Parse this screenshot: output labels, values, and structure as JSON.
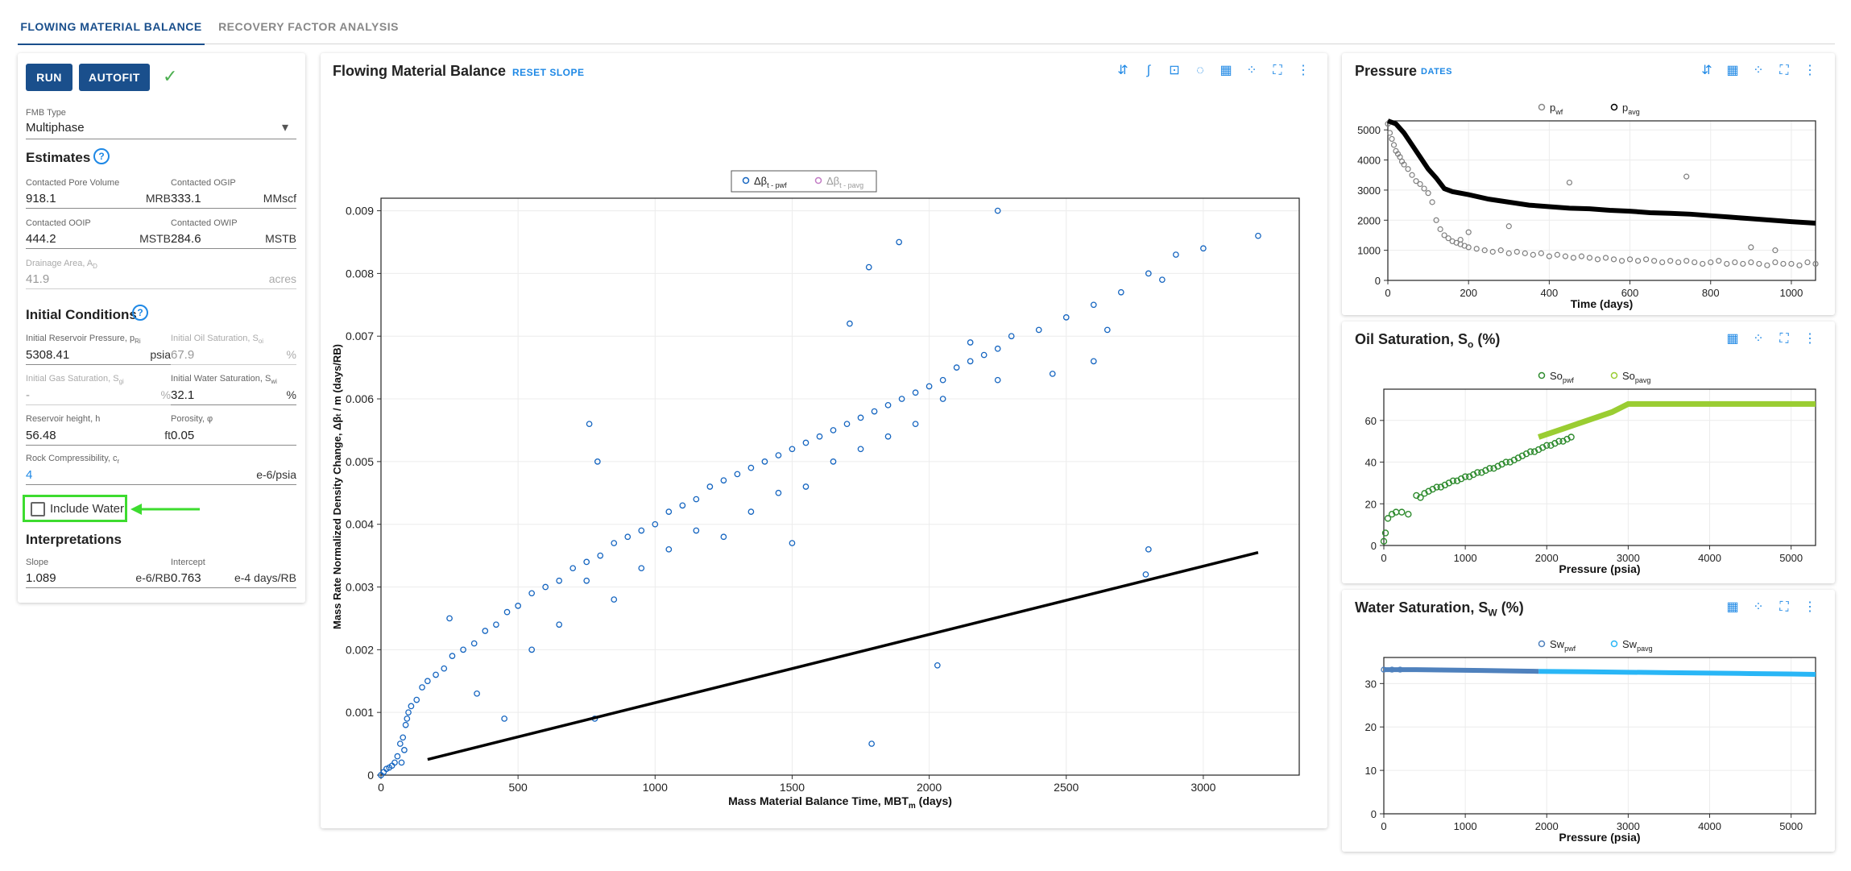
{
  "tabs": [
    {
      "label": "FLOWING MATERIAL BALANCE"
    },
    {
      "label": "RECOVERY FACTOR ANALYSIS"
    }
  ],
  "controls": {
    "run_label": "RUN",
    "autofit_label": "AUTOFIT",
    "fmb_type_label": "FMB Type",
    "fmb_type_value": "Multiphase",
    "estimates_title": "Estimates",
    "initial_conditions_title": "Initial Conditions",
    "include_water_label": "Include Water",
    "interpretations_title": "Interpretations",
    "help_glyph": "?"
  },
  "estimates": {
    "pore_volume": {
      "label": "Contacted Pore Volume",
      "value": "918.1",
      "unit": "MRB"
    },
    "ogip": {
      "label": "Contacted OGIP",
      "value": "333.1",
      "unit": "MMscf"
    },
    "ooip": {
      "label": "Contacted OOIP",
      "value": "444.2",
      "unit": "MSTB"
    },
    "owip": {
      "label": "Contacted OWIP",
      "value": "284.6",
      "unit": "MSTB"
    },
    "drainage_label": "Drainage Area, A",
    "drainage_sub": "D",
    "drainage_value": "41.9",
    "drainage_unit": "acres"
  },
  "initial_conditions": {
    "pressure_label": "Initial Reservoir Pressure, p",
    "pressure_sub": "Ri",
    "pressure_value": "5308.41",
    "pressure_unit": "psia",
    "oil_sat_label": "Initial Oil Saturation, S",
    "oil_sat_sub": "oi",
    "oil_sat_value": "67.9",
    "oil_sat_unit": "%",
    "gas_sat_label": "Initial Gas Saturation, S",
    "gas_sat_sub": "gi",
    "gas_sat_value": "-",
    "gas_sat_unit": "%",
    "water_sat_label": "Initial Water Saturation, S",
    "water_sat_sub": "wi",
    "water_sat_value": "32.1",
    "water_sat_unit": "%",
    "height_label": "Reservoir height, h",
    "height_value": "56.48",
    "height_unit": "ft",
    "porosity_label": "Porosity, φ",
    "porosity_value": "0.05",
    "compress_label": "Rock Compressibility, c",
    "compress_sub": "r",
    "compress_value": "4",
    "compress_unit": "e-6/psia"
  },
  "interpretations": {
    "slope": {
      "label": "Slope",
      "value": "1.089",
      "unit": "e-6/RB"
    },
    "intercept": {
      "label": "Intercept",
      "value": "0.763",
      "unit": "e-4 days/RB"
    }
  },
  "main_chart": {
    "title": "Flowing Material Balance",
    "reset_label": "RESET SLOPE",
    "legend_a": "Δβ",
    "legend_a_sub": "t - pwf",
    "legend_b": "Δβ",
    "legend_b_sub": "t - pavg",
    "xlabel": "Mass Material Balance Time, MBT",
    "xlabel_sub": "m",
    "xlabel_unit": " (days)",
    "ylabel": "Mass Rate Normalized Density Change, Δβ",
    "ylabel_sub": "t",
    "ylabel_unit": " / m (days/RB)"
  },
  "pressure_chart": {
    "title": "Pressure",
    "dates_label": "DATES",
    "legend_a": "p",
    "legend_a_sub": "wf",
    "legend_b": "p",
    "legend_b_sub": "avg",
    "xlabel": "Time (days)"
  },
  "oil_chart": {
    "title": "Oil Saturation, S",
    "title_sub": "o",
    "title_unit": " (%)",
    "legend_a": "So",
    "legend_a_sub": "pwf",
    "legend_b": "So",
    "legend_b_sub": "pavg",
    "xlabel": "Pressure (psia)"
  },
  "water_chart": {
    "title": "Water Saturation, S",
    "title_sub": "W",
    "title_unit": " (%)",
    "legend_a": "Sw",
    "legend_a_sub": "pwf",
    "legend_b": "Sw",
    "legend_b_sub": "pavg",
    "xlabel": "Pressure (psia)"
  },
  "colors": {
    "primary": "#1a4f8c",
    "accent": "#1e88e5",
    "pwf_blue": "#1565c0",
    "pavg_pink": "#c27bc4",
    "highlight_green": "#3ddc2f",
    "check_green": "#4caf50",
    "so_pwf": "#2e8b2e",
    "so_pavg": "#9acd32",
    "sw_pwf": "#4f81bd",
    "sw_pavg": "#29b6f6"
  },
  "icons": {
    "check": "✓",
    "dropdown": "▾",
    "more": "⋮",
    "table": "▦",
    "fullscreen": "⛶",
    "dots": "⁘"
  },
  "chart_data": [
    {
      "type": "scatter",
      "title": "Flowing Material Balance",
      "xlabel": "Mass Material Balance Time, MBTm (days)",
      "ylabel": "Mass Rate Normalized Density Change, Δβt / m (days/RB)",
      "xlim": [
        0,
        3350
      ],
      "ylim": [
        0,
        0.0092
      ],
      "xticks": [
        0,
        500,
        1000,
        1500,
        2000,
        2500,
        3000
      ],
      "yticks": [
        0,
        0.001,
        0.002,
        0.003,
        0.004,
        0.005,
        0.006,
        0.007,
        0.008,
        0.009
      ],
      "ytick_labels": [
        "0",
        "0.001",
        "0.002",
        "0.003",
        "0.004",
        "0.005",
        "0.006",
        "0.007",
        "0.008",
        "0.009"
      ],
      "legend": "top-center",
      "series": [
        {
          "name": "Δβt - pwf",
          "kind": "scatter",
          "x": [
            0,
            10,
            20,
            30,
            40,
            50,
            60,
            70,
            80,
            90,
            95,
            100,
            85,
            75,
            110,
            130,
            150,
            170,
            200,
            230,
            260,
            300,
            340,
            380,
            420,
            460,
            500,
            550,
            600,
            650,
            700,
            750,
            800,
            850,
            900,
            950,
            1000,
            1050,
            1100,
            1150,
            1200,
            1250,
            1300,
            1350,
            1400,
            1450,
            1500,
            1550,
            1600,
            1650,
            1700,
            1750,
            1800,
            1850,
            1900,
            1950,
            2000,
            2050,
            2100,
            2150,
            2200,
            2250,
            2300,
            2400,
            2500,
            2600,
            2700,
            2800,
            2900,
            3000,
            3200,
            1790,
            2030,
            2800,
            2790,
            780,
            1500,
            2150,
            2600,
            250,
            350,
            450,
            550,
            650,
            750,
            850,
            950,
            1050,
            1150,
            1250,
            1350,
            1450,
            1550,
            1650,
            1750,
            1850,
            1950,
            2050,
            2250,
            2450,
            2650,
            2850,
            760,
            790,
            1710,
            1780,
            1890,
            2250
          ],
          "y": [
            0,
            5e-05,
            0.0001,
            0.00012,
            0.00015,
            0.0002,
            0.0003,
            0.0005,
            0.0006,
            0.0008,
            0.0009,
            0.001,
            0.0004,
            0.0002,
            0.0011,
            0.0012,
            0.0014,
            0.0015,
            0.0016,
            0.0017,
            0.0019,
            0.002,
            0.0021,
            0.0023,
            0.0024,
            0.0026,
            0.0027,
            0.0029,
            0.003,
            0.0031,
            0.0033,
            0.0034,
            0.0035,
            0.0037,
            0.0038,
            0.0039,
            0.004,
            0.0042,
            0.0043,
            0.0044,
            0.0046,
            0.0047,
            0.0048,
            0.0049,
            0.005,
            0.0051,
            0.0052,
            0.0053,
            0.0054,
            0.0055,
            0.0056,
            0.0057,
            0.0058,
            0.0059,
            0.006,
            0.0061,
            0.0062,
            0.0063,
            0.0065,
            0.0066,
            0.0067,
            0.0068,
            0.007,
            0.0071,
            0.0073,
            0.0075,
            0.0077,
            0.008,
            0.0083,
            0.0084,
            0.0086,
            0.0005,
            0.00175,
            0.0036,
            0.0032,
            0.0009,
            0.0037,
            0.0069,
            0.0066,
            0.0025,
            0.0013,
            0.0009,
            0.002,
            0.0024,
            0.0031,
            0.0028,
            0.0033,
            0.0036,
            0.0039,
            0.0038,
            0.0042,
            0.0045,
            0.0046,
            0.005,
            0.0052,
            0.0054,
            0.0056,
            0.006,
            0.0063,
            0.0064,
            0.0071,
            0.0079,
            0.0056,
            0.005,
            0.0072,
            0.0081,
            0.0085,
            0.009
          ]
        },
        {
          "name": "Δβt - pavg",
          "kind": "scatter",
          "x": [],
          "y": []
        },
        {
          "name": "fit",
          "kind": "line",
          "x": [
            170,
            3200
          ],
          "y": [
            0.00025,
            0.00355
          ]
        }
      ]
    },
    {
      "type": "scatter",
      "title": "Pressure",
      "xlabel": "Time (days)",
      "xlim": [
        0,
        1060
      ],
      "ylim": [
        0,
        5300
      ],
      "xticks": [
        0,
        200,
        400,
        600,
        800,
        1000
      ],
      "yticks": [
        0,
        1000,
        2000,
        3000,
        4000,
        5000
      ],
      "legend": "top-center",
      "series": [
        {
          "name": "pwf",
          "kind": "scatter",
          "x": [
            0,
            5,
            10,
            15,
            20,
            25,
            30,
            35,
            40,
            50,
            60,
            70,
            80,
            90,
            100,
            110,
            120,
            130,
            140,
            150,
            160,
            170,
            180,
            190,
            200,
            220,
            240,
            260,
            280,
            300,
            320,
            340,
            360,
            380,
            400,
            420,
            440,
            460,
            480,
            500,
            520,
            540,
            560,
            580,
            600,
            620,
            640,
            660,
            680,
            700,
            720,
            740,
            760,
            780,
            800,
            820,
            840,
            860,
            880,
            900,
            920,
            940,
            960,
            980,
            1000,
            1020,
            1040,
            1060,
            450,
            740,
            900,
            960,
            300,
            200,
            180
          ],
          "y": [
            5200,
            4900,
            4700,
            4500,
            4300,
            4200,
            4100,
            3950,
            3850,
            3700,
            3500,
            3300,
            3200,
            3050,
            2900,
            2600,
            2000,
            1700,
            1500,
            1400,
            1300,
            1250,
            1200,
            1150,
            1100,
            1050,
            1000,
            950,
            1000,
            900,
            950,
            900,
            850,
            900,
            800,
            850,
            800,
            750,
            800,
            750,
            700,
            750,
            700,
            650,
            700,
            650,
            700,
            650,
            600,
            650,
            600,
            650,
            600,
            550,
            600,
            650,
            550,
            600,
            550,
            600,
            550,
            500,
            600,
            550,
            550,
            500,
            600,
            550,
            3250,
            3450,
            1100,
            1000,
            1800,
            1600,
            1350
          ]
        },
        {
          "name": "pavg",
          "kind": "line",
          "x": [
            0,
            20,
            40,
            60,
            80,
            100,
            120,
            140,
            160,
            200,
            250,
            300,
            350,
            400,
            450,
            500,
            550,
            600,
            650,
            700,
            750,
            800,
            850,
            900,
            950,
            1000,
            1060
          ],
          "y": [
            5300,
            5200,
            4900,
            4500,
            4100,
            3700,
            3400,
            3050,
            2950,
            2850,
            2700,
            2600,
            2500,
            2450,
            2400,
            2380,
            2330,
            2300,
            2250,
            2230,
            2200,
            2150,
            2100,
            2050,
            2000,
            1950,
            1900
          ]
        }
      ]
    },
    {
      "type": "scatter",
      "title": "Oil Saturation, So (%)",
      "xlabel": "Pressure (psia)",
      "xlim": [
        0,
        5300
      ],
      "ylim": [
        0,
        75
      ],
      "xticks": [
        0,
        1000,
        2000,
        3000,
        4000,
        5000
      ],
      "yticks": [
        0,
        20,
        40,
        60
      ],
      "legend": "top-center",
      "series": [
        {
          "name": "Sopwf",
          "kind": "scatter",
          "x": [
            0,
            20,
            50,
            100,
            150,
            220,
            300,
            400,
            450,
            500,
            550,
            600,
            650,
            700,
            750,
            800,
            850,
            900,
            950,
            1000,
            1050,
            1100,
            1150,
            1200,
            1250,
            1300,
            1350,
            1400,
            1450,
            1500,
            1550,
            1600,
            1650,
            1700,
            1750,
            1800,
            1850,
            1900,
            1950,
            2000,
            2050,
            2100,
            2150,
            2200,
            2250,
            2300
          ],
          "y": [
            2,
            6,
            13,
            15,
            16,
            16,
            15,
            24,
            23,
            25,
            26,
            27,
            28,
            28,
            29,
            30,
            31,
            31,
            32,
            33,
            33,
            34,
            35,
            35,
            36,
            37,
            37,
            38,
            39,
            40,
            40,
            41,
            42,
            43,
            44,
            45,
            45,
            46,
            47,
            48,
            48,
            49,
            50,
            50,
            51,
            52
          ]
        },
        {
          "name": "Sopavg",
          "kind": "line",
          "x": [
            1900,
            2200,
            2500,
            2800,
            3000,
            3500,
            4000,
            4500,
            5000,
            5300
          ],
          "y": [
            52,
            56,
            60,
            64,
            67.9,
            67.9,
            67.9,
            67.9,
            67.9,
            67.9
          ]
        }
      ]
    },
    {
      "type": "scatter",
      "title": "Water Saturation, SW (%)",
      "xlabel": "Pressure (psia)",
      "xlim": [
        0,
        5300
      ],
      "ylim": [
        0,
        36
      ],
      "xticks": [
        0,
        1000,
        2000,
        3000,
        4000,
        5000
      ],
      "yticks": [
        0,
        10,
        20,
        30
      ],
      "legend": "top-center",
      "series": [
        {
          "name": "Swpwf",
          "kind": "line",
          "x": [
            0,
            100,
            200,
            400,
            800,
            1200,
            1600,
            1900
          ],
          "y": [
            33.2,
            33.2,
            33.2,
            33.2,
            33.1,
            33.0,
            32.9,
            32.8
          ]
        },
        {
          "name": "Swpavg",
          "kind": "line",
          "x": [
            1900,
            2500,
            3000,
            3500,
            4000,
            4500,
            5000,
            5300
          ],
          "y": [
            32.8,
            32.7,
            32.6,
            32.5,
            32.4,
            32.3,
            32.2,
            32.1
          ]
        }
      ]
    }
  ]
}
